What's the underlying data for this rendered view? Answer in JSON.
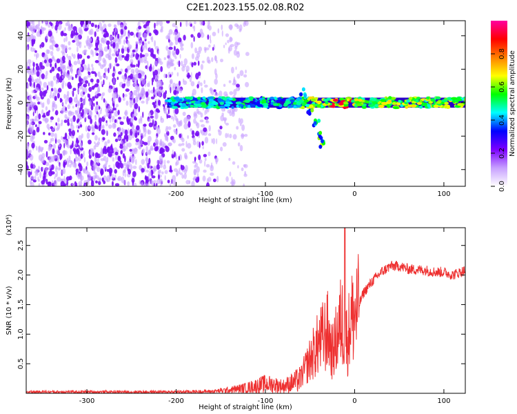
{
  "figure": {
    "title": "C2E1.2023.155.02.08.R02"
  },
  "chart_data": [
    {
      "type": "heatmap",
      "name": "spectrogram",
      "xlabel": "Height of straight line (km)",
      "ylabel": "Frequency (Hz)",
      "xlim": [
        -368,
        124
      ],
      "ylim": [
        -50,
        49
      ],
      "xticks": [
        -300,
        -200,
        -100,
        0,
        100
      ],
      "yticks": [
        -40,
        -20,
        0,
        20,
        40
      ],
      "colorbar": {
        "label": "Normalized spectral amplitude",
        "range": [
          0,
          1
        ],
        "ticks": [
          "0.0",
          "0.2",
          "0.4",
          "0.6",
          "0.8"
        ],
        "colormap": [
          "#ffffff",
          "#c7a0ff",
          "#7b00ff",
          "#0000ff",
          "#00ffff",
          "#00ff00",
          "#ffff00",
          "#ff8000",
          "#ff0000",
          "#ff00a0"
        ]
      },
      "features": {
        "noise_region_km": [
          -368,
          -150
        ],
        "main_line_freq_hz": 0,
        "line_start_km": -210,
        "branch_points": [
          {
            "x": -58,
            "y": 6
          },
          {
            "x": -50,
            "y": -5
          },
          {
            "x": -43,
            "y": -12
          },
          {
            "x": -38,
            "y": -20
          },
          {
            "x": -36,
            "y": -25
          }
        ]
      }
    },
    {
      "type": "line",
      "name": "snr",
      "xlabel": "Height of straight line (km)",
      "ylabel": "SNR (10 * v/v)",
      "y_multiplier": "(x10⁴)",
      "xlim": [
        -368,
        124
      ],
      "ylim": [
        0,
        2.8
      ],
      "xticks": [
        -300,
        -200,
        -100,
        0,
        100
      ],
      "yticks": [
        "0.5",
        "1.0",
        "1.5",
        "2.0",
        "2.5"
      ],
      "color": "#ee3030",
      "series": [
        {
          "x": [
            -368,
            -300,
            -250,
            -200,
            -160,
            -140,
            -120,
            -100,
            -90,
            -80,
            -70,
            -60,
            -50,
            -40,
            -30,
            -25,
            -20,
            -15,
            -12,
            -8,
            -5,
            0,
            5,
            10,
            20,
            30,
            40,
            50,
            60,
            80,
            90,
            100,
            110,
            124
          ],
          "values": [
            0.03,
            0.03,
            0.03,
            0.03,
            0.04,
            0.07,
            0.12,
            0.2,
            0.18,
            0.15,
            0.22,
            0.3,
            0.6,
            0.9,
            1.1,
            0.7,
            1.0,
            1.3,
            1.2,
            0.9,
            1.3,
            1.4,
            1.5,
            1.7,
            1.9,
            2.05,
            2.15,
            2.15,
            2.1,
            2.08,
            2.05,
            2.05,
            2.0,
            2.08
          ]
        }
      ]
    }
  ]
}
